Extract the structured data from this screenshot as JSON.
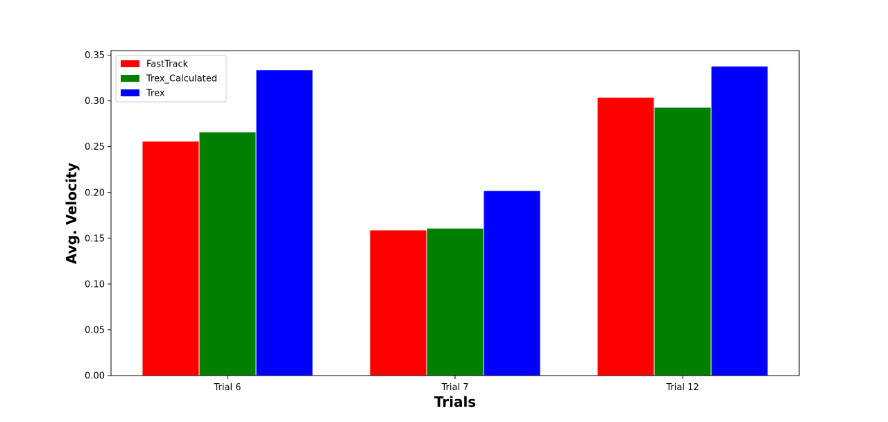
{
  "chart_data": {
    "type": "bar",
    "title": "",
    "xlabel": "Trials",
    "ylabel": "Avg. Velocity",
    "categories": [
      "Trial 6",
      "Trial 7",
      "Trial 12"
    ],
    "series": [
      {
        "name": "FastTrack",
        "color": "#ff0000",
        "values": [
          0.256,
          0.159,
          0.304
        ]
      },
      {
        "name": "Trex_Calculated",
        "color": "#008000",
        "values": [
          0.266,
          0.161,
          0.293
        ]
      },
      {
        "name": "Trex",
        "color": "#0000ff",
        "values": [
          0.334,
          0.202,
          0.338
        ]
      }
    ],
    "ylim": [
      0,
      0.355
    ],
    "yticks": [
      0.0,
      0.05,
      0.1,
      0.15,
      0.2,
      0.25,
      0.3,
      0.35
    ],
    "ytick_labels": [
      "0.00",
      "0.05",
      "0.10",
      "0.15",
      "0.20",
      "0.25",
      "0.30",
      "0.35"
    ],
    "grid": false,
    "legend_position": "top-left"
  }
}
